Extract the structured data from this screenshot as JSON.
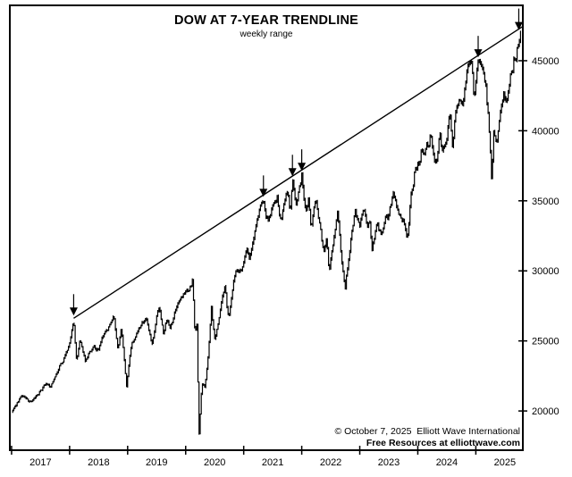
{
  "title": "DOW AT 7-YEAR TRENDLINE",
  "subtitle": "weekly range",
  "attribution": {
    "copyright": "© October 7, 2025  Elliott Wave International",
    "resources": "Free Resources at elliottwave.com"
  },
  "colors": {
    "ink": "#000000",
    "background": "#ffffff"
  },
  "chart_data": {
    "type": "bar",
    "subtype": "weekly high-low range bars",
    "series_name": "Dow Jones Industrial Average",
    "title": "DOW AT 7-YEAR TRENDLINE",
    "subtitle": "weekly range",
    "xlabel": "",
    "ylabel": "",
    "grid": false,
    "legend": null,
    "x_tick_years": [
      2017,
      2018,
      2019,
      2020,
      2021,
      2022,
      2023,
      2024,
      2025
    ],
    "y_ticks": [
      20000,
      25000,
      30000,
      35000,
      40000,
      45000
    ],
    "xlim": [
      2016.97,
      2025.81
    ],
    "ylim": [
      17200,
      48950
    ],
    "trendline": {
      "name": "7-year trendline",
      "from": {
        "t": 2018.07,
        "value": 26616
      },
      "to": {
        "t": 2025.81,
        "value": 47450
      }
    },
    "arrows": [
      {
        "t": 2018.07,
        "value": 26616
      },
      {
        "t": 2021.34,
        "value": 35091
      },
      {
        "t": 2021.84,
        "value": 36565
      },
      {
        "t": 2022.0,
        "value": 36952
      },
      {
        "t": 2025.04,
        "value": 45050
      },
      {
        "t": 2025.74,
        "value": 47000
      }
    ],
    "anchors_format": "[decimal_year, dow_value] key points read from chart",
    "anchors": [
      [
        2017.0,
        19900
      ],
      [
        2017.08,
        20400
      ],
      [
        2017.17,
        21115
      ],
      [
        2017.3,
        20650
      ],
      [
        2017.42,
        21100
      ],
      [
        2017.52,
        21500
      ],
      [
        2017.6,
        22000
      ],
      [
        2017.66,
        21650
      ],
      [
        2017.8,
        22850
      ],
      [
        2017.92,
        23950
      ],
      [
        2018.0,
        24850
      ],
      [
        2018.07,
        26616
      ],
      [
        2018.12,
        23450
      ],
      [
        2018.18,
        25200
      ],
      [
        2018.27,
        23550
      ],
      [
        2018.35,
        24300
      ],
      [
        2018.42,
        24650
      ],
      [
        2018.5,
        24350
      ],
      [
        2018.58,
        25350
      ],
      [
        2018.68,
        26050
      ],
      [
        2018.76,
        26951
      ],
      [
        2018.83,
        24450
      ],
      [
        2018.89,
        25900
      ],
      [
        2018.98,
        21712
      ],
      [
        2019.05,
        24350
      ],
      [
        2019.13,
        25250
      ],
      [
        2019.22,
        25950
      ],
      [
        2019.32,
        26650
      ],
      [
        2019.42,
        24750
      ],
      [
        2019.5,
        26800
      ],
      [
        2019.55,
        27350
      ],
      [
        2019.62,
        25400
      ],
      [
        2019.68,
        26600
      ],
      [
        2019.73,
        25900
      ],
      [
        2019.8,
        26950
      ],
      [
        2019.9,
        27850
      ],
      [
        2020.0,
        28540
      ],
      [
        2020.08,
        28950
      ],
      [
        2020.12,
        29568
      ],
      [
        2020.16,
        25400
      ],
      [
        2020.19,
        26700
      ],
      [
        2020.23,
        18300
      ],
      [
        2020.28,
        22050
      ],
      [
        2020.33,
        21700
      ],
      [
        2020.38,
        23550
      ],
      [
        2020.44,
        27570
      ],
      [
        2020.5,
        25150
      ],
      [
        2020.57,
        26350
      ],
      [
        2020.62,
        27950
      ],
      [
        2020.68,
        29100
      ],
      [
        2020.74,
        26600
      ],
      [
        2020.8,
        28350
      ],
      [
        2020.86,
        29950
      ],
      [
        2020.93,
        30050
      ],
      [
        2021.0,
        30606
      ],
      [
        2021.06,
        31600
      ],
      [
        2021.1,
        30750
      ],
      [
        2021.16,
        32050
      ],
      [
        2021.25,
        33850
      ],
      [
        2021.34,
        35091
      ],
      [
        2021.42,
        33600
      ],
      [
        2021.5,
        34650
      ],
      [
        2021.58,
        35400
      ],
      [
        2021.63,
        33740
      ],
      [
        2021.7,
        34950
      ],
      [
        2021.76,
        35700
      ],
      [
        2021.8,
        34050
      ],
      [
        2021.84,
        36565
      ],
      [
        2021.9,
        34640
      ],
      [
        2021.95,
        35950
      ],
      [
        2022.0,
        36952
      ],
      [
        2022.07,
        34350
      ],
      [
        2022.12,
        35250
      ],
      [
        2022.16,
        32950
      ],
      [
        2022.24,
        35100
      ],
      [
        2022.32,
        33200
      ],
      [
        2022.38,
        31250
      ],
      [
        2022.43,
        32350
      ],
      [
        2022.47,
        29760
      ],
      [
        2022.53,
        31450
      ],
      [
        2022.62,
        34280
      ],
      [
        2022.68,
        31100
      ],
      [
        2022.72,
        29650
      ],
      [
        2022.75,
        28725
      ],
      [
        2022.8,
        30550
      ],
      [
        2022.85,
        32550
      ],
      [
        2022.92,
        34400
      ],
      [
        2023.0,
        33147
      ],
      [
        2023.07,
        34350
      ],
      [
        2023.13,
        33050
      ],
      [
        2023.17,
        33650
      ],
      [
        2023.21,
        31430
      ],
      [
        2023.3,
        33550
      ],
      [
        2023.37,
        32650
      ],
      [
        2023.45,
        34050
      ],
      [
        2023.52,
        34550
      ],
      [
        2023.58,
        35679
      ],
      [
        2023.65,
        34500
      ],
      [
        2023.72,
        33650
      ],
      [
        2023.78,
        33050
      ],
      [
        2023.82,
        32327
      ],
      [
        2023.88,
        35450
      ],
      [
        2023.95,
        37350
      ],
      [
        2024.0,
        37689
      ],
      [
        2024.06,
        38650
      ],
      [
        2024.15,
        39150
      ],
      [
        2024.22,
        39889
      ],
      [
        2024.3,
        37735
      ],
      [
        2024.38,
        40000
      ],
      [
        2024.42,
        38550
      ],
      [
        2024.5,
        39350
      ],
      [
        2024.55,
        41376
      ],
      [
        2024.6,
        38650
      ],
      [
        2024.65,
        41250
      ],
      [
        2024.72,
        42350
      ],
      [
        2024.78,
        41950
      ],
      [
        2024.82,
        43350
      ],
      [
        2024.88,
        44950
      ],
      [
        2024.93,
        45073
      ],
      [
        2024.97,
        42300
      ],
      [
        2025.04,
        45050
      ],
      [
        2025.12,
        44350
      ],
      [
        2025.17,
        43550
      ],
      [
        2025.21,
        41500
      ],
      [
        2025.24,
        40000
      ],
      [
        2025.27,
        36611
      ],
      [
        2025.31,
        40250
      ],
      [
        2025.36,
        39050
      ],
      [
        2025.42,
        41350
      ],
      [
        2025.48,
        42750
      ],
      [
        2025.53,
        42150
      ],
      [
        2025.6,
        44250
      ],
      [
        2025.66,
        45550
      ],
      [
        2025.72,
        46350
      ],
      [
        2025.77,
        46990
      ]
    ]
  }
}
